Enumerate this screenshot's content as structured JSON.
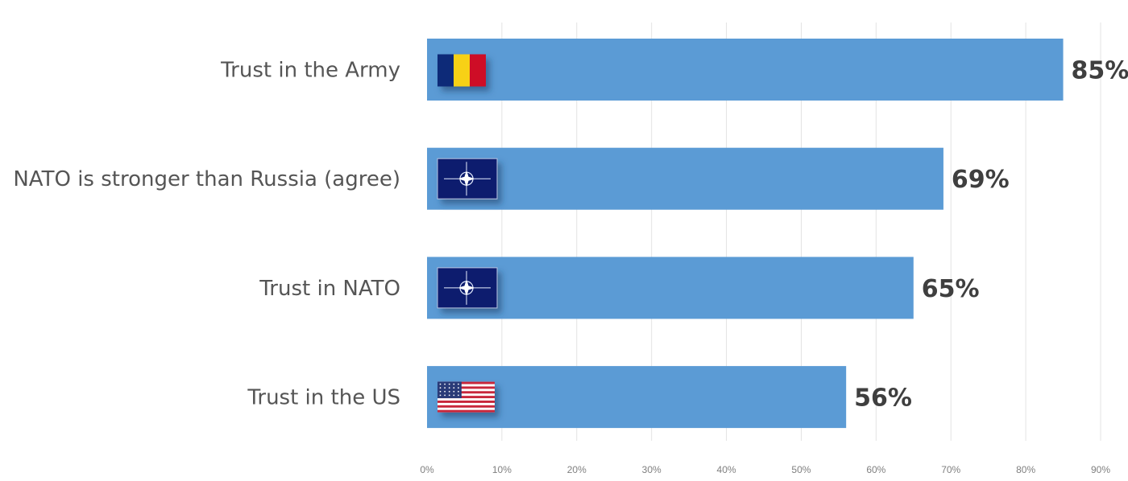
{
  "chart_data": {
    "type": "bar",
    "orientation": "horizontal",
    "categories": [
      "Trust in the Army",
      "NATO is stronger than Russia (agree)",
      "Trust in NATO",
      "Trust in the US"
    ],
    "values": [
      85,
      69,
      65,
      56
    ],
    "value_labels": [
      "85%",
      "69%",
      "65%",
      "56%"
    ],
    "flags": [
      "romania-flag-icon",
      "nato-flag-icon",
      "nato-flag-icon",
      "usa-flag-icon"
    ],
    "xlim": [
      0,
      90
    ],
    "xticks": [
      0,
      10,
      20,
      30,
      40,
      50,
      60,
      70,
      80,
      90
    ],
    "xtick_labels": [
      "0%",
      "10%",
      "20%",
      "30%",
      "40%",
      "50%",
      "60%",
      "70%",
      "80%",
      "90%"
    ],
    "grid": true,
    "bar_color": "#5b9bd5"
  }
}
